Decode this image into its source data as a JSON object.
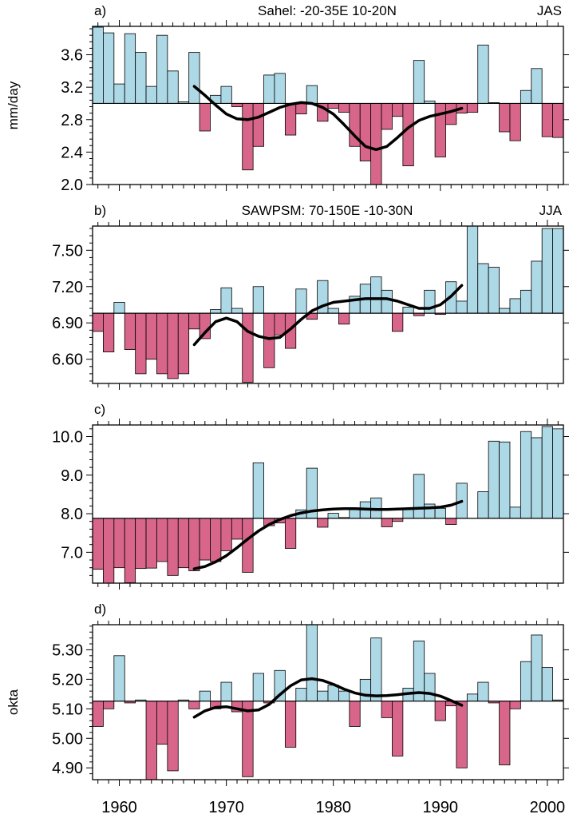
{
  "colors": {
    "above": "#add8e6",
    "below": "#d8668a",
    "frame": "#000000",
    "smooth": "#000000"
  },
  "chart_data": [
    {
      "type": "bar",
      "panel_label": "a)",
      "title": "Sahel: -20-35E 10-20N",
      "season": "JAS",
      "ylabel": "mm/day",
      "baseline": 3.0,
      "ylim": [
        2.0,
        3.95
      ],
      "yticks": [
        2.0,
        2.4,
        2.8,
        3.2,
        3.6
      ],
      "ytick_labels": [
        "2.0",
        "2.4",
        "2.8",
        "3.2",
        "3.6"
      ],
      "x": [
        1958,
        1959,
        1960,
        1961,
        1962,
        1963,
        1964,
        1965,
        1966,
        1967,
        1968,
        1969,
        1970,
        1971,
        1972,
        1973,
        1974,
        1975,
        1976,
        1977,
        1978,
        1979,
        1980,
        1981,
        1982,
        1983,
        1984,
        1985,
        1986,
        1987,
        1988,
        1989,
        1990,
        1991,
        1992,
        1993,
        1994,
        1995,
        1996,
        1997,
        1998,
        1999,
        2000,
        2001
      ],
      "values": [
        3.94,
        3.87,
        3.24,
        3.86,
        3.63,
        3.21,
        3.84,
        3.4,
        3.02,
        3.63,
        2.66,
        3.1,
        3.21,
        2.96,
        2.18,
        2.47,
        3.35,
        3.37,
        2.61,
        2.87,
        3.22,
        2.78,
        2.94,
        2.89,
        2.47,
        2.29,
        2.0,
        2.68,
        2.84,
        2.23,
        3.53,
        3.03,
        2.34,
        2.74,
        2.88,
        2.89,
        3.72,
        3.01,
        2.65,
        2.54,
        3.16,
        3.43,
        2.59,
        2.58
      ],
      "smooth": {
        "x": [
          1967,
          1968,
          1969,
          1970,
          1971,
          1972,
          1973,
          1974,
          1975,
          1976,
          1977,
          1978,
          1979,
          1980,
          1981,
          1982,
          1983,
          1984,
          1985,
          1986,
          1987,
          1988,
          1989,
          1990,
          1991,
          1992
        ],
        "y": [
          3.21,
          3.1,
          2.98,
          2.87,
          2.81,
          2.8,
          2.83,
          2.89,
          2.95,
          2.99,
          3.01,
          3.0,
          2.95,
          2.87,
          2.74,
          2.6,
          2.47,
          2.43,
          2.47,
          2.58,
          2.7,
          2.79,
          2.84,
          2.87,
          2.9,
          2.94
        ]
      }
    },
    {
      "type": "bar",
      "panel_label": "b)",
      "title": "SAWPSM: 70-150E -10-30N",
      "season": "JJA",
      "ylabel": "",
      "baseline": 6.98,
      "ylim": [
        6.4,
        7.7
      ],
      "yticks": [
        6.6,
        6.9,
        7.2,
        7.5
      ],
      "ytick_labels": [
        "6.60",
        "6.90",
        "7.20",
        "7.50"
      ],
      "x": [
        1958,
        1959,
        1960,
        1961,
        1962,
        1963,
        1964,
        1965,
        1966,
        1967,
        1968,
        1969,
        1970,
        1971,
        1972,
        1973,
        1974,
        1975,
        1976,
        1977,
        1978,
        1979,
        1980,
        1981,
        1982,
        1983,
        1984,
        1985,
        1986,
        1987,
        1988,
        1989,
        1990,
        1991,
        1992,
        1993,
        1994,
        1995,
        1996,
        1997,
        1998,
        1999,
        2000,
        2001
      ],
      "values": [
        6.83,
        6.66,
        7.07,
        6.68,
        6.48,
        6.6,
        6.48,
        6.44,
        6.48,
        6.85,
        6.77,
        7.01,
        7.19,
        7.02,
        6.41,
        7.2,
        6.53,
        6.8,
        6.69,
        7.18,
        6.93,
        7.25,
        7.02,
        6.89,
        7.12,
        7.22,
        7.28,
        7.17,
        6.83,
        7.03,
        6.96,
        7.17,
        6.97,
        7.24,
        7.08,
        7.7,
        7.39,
        7.36,
        7.02,
        7.1,
        7.17,
        7.41,
        7.68,
        7.68
      ],
      "smooth": {
        "x": [
          1967,
          1968,
          1969,
          1970,
          1971,
          1972,
          1973,
          1974,
          1975,
          1976,
          1977,
          1978,
          1979,
          1980,
          1981,
          1982,
          1983,
          1984,
          1985,
          1986,
          1987,
          1988,
          1989,
          1990,
          1991,
          1992
        ],
        "y": [
          6.72,
          6.82,
          6.91,
          6.94,
          6.91,
          6.83,
          6.79,
          6.77,
          6.78,
          6.85,
          6.93,
          7.0,
          7.04,
          7.07,
          7.08,
          7.09,
          7.1,
          7.1,
          7.1,
          7.08,
          7.05,
          7.02,
          7.02,
          7.05,
          7.12,
          7.21
        ]
      }
    },
    {
      "type": "bar",
      "panel_label": "c)",
      "title": "",
      "season": "",
      "ylabel": "",
      "baseline": 7.88,
      "ylim": [
        6.2,
        10.3
      ],
      "yticks": [
        7.0,
        8.0,
        9.0,
        10.0
      ],
      "ytick_labels": [
        "7.0",
        "8.0",
        "9.0",
        "10.0"
      ],
      "x": [
        1958,
        1959,
        1960,
        1961,
        1962,
        1963,
        1964,
        1965,
        1966,
        1967,
        1968,
        1969,
        1970,
        1971,
        1972,
        1973,
        1974,
        1975,
        1976,
        1977,
        1978,
        1979,
        1980,
        1981,
        1982,
        1983,
        1984,
        1985,
        1986,
        1987,
        1988,
        1989,
        1990,
        1991,
        1992,
        1993,
        1994,
        1995,
        1996,
        1997,
        1998,
        1999,
        2000,
        2001
      ],
      "values": [
        6.56,
        6.2,
        6.6,
        6.21,
        6.58,
        6.59,
        6.76,
        6.4,
        6.6,
        6.52,
        6.8,
        6.76,
        7.04,
        7.34,
        6.48,
        9.32,
        7.69,
        7.76,
        7.1,
        8.1,
        9.18,
        7.65,
        8.01,
        7.9,
        8.15,
        8.31,
        8.41,
        7.66,
        7.8,
        8.11,
        9.02,
        8.25,
        8.14,
        7.72,
        8.79,
        7.88,
        8.57,
        9.88,
        9.86,
        8.17,
        10.13,
        9.97,
        10.26,
        10.2
      ],
      "smooth": {
        "x": [
          1967,
          1968,
          1969,
          1970,
          1971,
          1972,
          1973,
          1974,
          1975,
          1976,
          1977,
          1978,
          1979,
          1980,
          1981,
          1982,
          1983,
          1984,
          1985,
          1986,
          1987,
          1988,
          1989,
          1990,
          1991,
          1992
        ],
        "y": [
          6.57,
          6.63,
          6.75,
          6.91,
          7.12,
          7.34,
          7.55,
          7.72,
          7.85,
          7.95,
          8.02,
          8.07,
          8.1,
          8.12,
          8.13,
          8.13,
          8.12,
          8.11,
          8.11,
          8.12,
          8.13,
          8.14,
          8.15,
          8.17,
          8.22,
          8.32
        ]
      }
    },
    {
      "type": "bar",
      "panel_label": "d)",
      "title": "",
      "season": "",
      "ylabel": "okta",
      "baseline": 5.126,
      "ylim": [
        4.86,
        5.385
      ],
      "yticks": [
        4.9,
        5.0,
        5.1,
        5.2,
        5.3
      ],
      "ytick_labels": [
        "4.90",
        "5.00",
        "5.10",
        "5.20",
        "5.30"
      ],
      "x": [
        1958,
        1959,
        1960,
        1961,
        1962,
        1963,
        1964,
        1965,
        1966,
        1967,
        1968,
        1969,
        1970,
        1971,
        1972,
        1973,
        1974,
        1975,
        1976,
        1977,
        1978,
        1979,
        1980,
        1981,
        1982,
        1983,
        1984,
        1985,
        1986,
        1987,
        1988,
        1989,
        1990,
        1991,
        1992,
        1993,
        1994,
        1995,
        1996,
        1997,
        1998,
        1999,
        2000,
        2001
      ],
      "values": [
        5.04,
        5.1,
        5.28,
        5.12,
        5.13,
        4.86,
        4.98,
        4.89,
        5.13,
        5.1,
        5.16,
        5.1,
        5.19,
        5.09,
        4.87,
        5.22,
        5.12,
        5.23,
        4.97,
        5.17,
        5.39,
        5.16,
        5.18,
        5.16,
        5.04,
        5.2,
        5.34,
        5.07,
        4.94,
        5.17,
        5.33,
        5.22,
        5.06,
        5.11,
        4.9,
        5.15,
        5.19,
        5.12,
        4.91,
        5.1,
        5.26,
        5.35,
        5.24,
        5.13
      ],
      "smooth": {
        "x": [
          1967,
          1968,
          1969,
          1970,
          1971,
          1972,
          1973,
          1974,
          1975,
          1976,
          1977,
          1978,
          1979,
          1980,
          1981,
          1982,
          1983,
          1984,
          1985,
          1986,
          1987,
          1988,
          1989,
          1990,
          1991,
          1992
        ],
        "y": [
          5.072,
          5.093,
          5.105,
          5.107,
          5.1,
          5.093,
          5.096,
          5.115,
          5.148,
          5.178,
          5.198,
          5.202,
          5.196,
          5.183,
          5.167,
          5.154,
          5.146,
          5.144,
          5.145,
          5.148,
          5.152,
          5.155,
          5.152,
          5.143,
          5.128,
          5.112
        ]
      }
    }
  ],
  "xaxis": {
    "range": [
      1957.5,
      2001.5
    ],
    "major_ticks": [
      1960,
      1970,
      1980,
      1990,
      2000
    ],
    "labels": [
      "1960",
      "1970",
      "1980",
      "1990",
      "2000"
    ]
  }
}
